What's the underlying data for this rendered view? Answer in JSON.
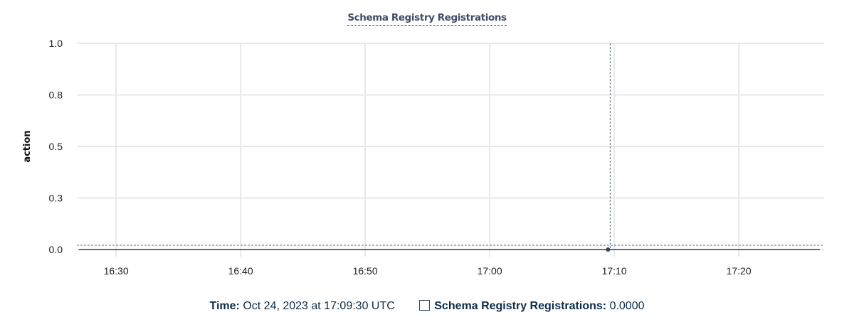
{
  "chart_data": {
    "type": "line",
    "title": "Schema Registry Registrations",
    "ylabel": "action",
    "xlabel": "",
    "ylim": [
      0,
      1
    ],
    "xlim": [
      "16:26:51",
      "17:26:51"
    ],
    "y_ticks": [
      {
        "value": 0,
        "label": "0.0"
      },
      {
        "value": 0.25,
        "label": "0.3"
      },
      {
        "value": 0.5,
        "label": "0.5"
      },
      {
        "value": 0.75,
        "label": "0.8"
      },
      {
        "value": 1,
        "label": "1.0"
      }
    ],
    "x_ticks": [
      "16:30",
      "16:40",
      "16:50",
      "17:00",
      "17:10",
      "17:20"
    ],
    "grid": true,
    "series": [
      {
        "name": "Schema Registry Registrations",
        "color": "#33415c",
        "x": [
          "16:27:00",
          "17:26:30"
        ],
        "y": [
          0,
          0
        ]
      }
    ],
    "hover": {
      "x": "17:09:30",
      "y": 0
    }
  },
  "legend": {
    "time_label": "Time:",
    "time_value": "Oct 24, 2023 at 17:09:30 UTC",
    "series_label": "Schema Registry Registrations:",
    "series_value": "0.0000"
  }
}
